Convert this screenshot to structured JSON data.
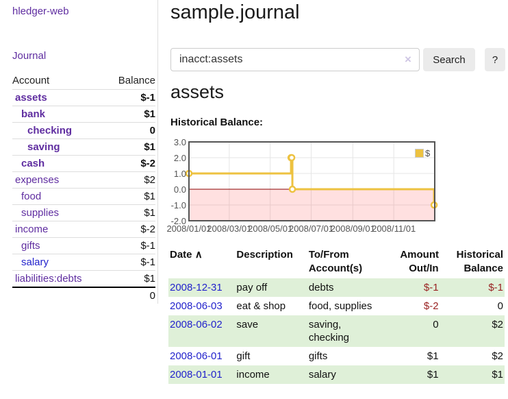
{
  "app": {
    "title": "hledger-web"
  },
  "sidebar": {
    "journal_link": "Journal",
    "accounts_table": {
      "header_account": "Account",
      "header_balance": "Balance",
      "rows": [
        {
          "account": "assets",
          "balance": "$-1",
          "indent": 1,
          "in_query": true,
          "balance_class": "neg-strong"
        },
        {
          "account": "bank",
          "balance": "$1",
          "indent": 2,
          "in_query": true,
          "balance_class": ""
        },
        {
          "account": "checking",
          "balance": "0",
          "indent": 3,
          "in_query": true,
          "balance_class": ""
        },
        {
          "account": "saving",
          "balance": "$1",
          "indent": 3,
          "in_query": true,
          "balance_class": ""
        },
        {
          "account": "cash",
          "balance": "$-2",
          "indent": 2,
          "in_query": true,
          "balance_class": "neg-strong"
        },
        {
          "account": "expenses",
          "balance": "$2",
          "indent": 1,
          "in_query": false,
          "balance_class": ""
        },
        {
          "account": "food",
          "balance": "$1",
          "indent": 2,
          "in_query": false,
          "balance_class": ""
        },
        {
          "account": "supplies",
          "balance": "$1",
          "indent": 2,
          "in_query": false,
          "balance_class": ""
        },
        {
          "account": "income",
          "balance": "$-2",
          "indent": 1,
          "in_query": false,
          "balance_class": "neg-muted"
        },
        {
          "account": "gifts",
          "balance": "$-1",
          "indent": 2,
          "in_query": false,
          "balance_class": "neg-muted"
        },
        {
          "account": "salary",
          "balance": "$-1",
          "indent": 2,
          "in_query": false,
          "balance_class": "neg-muted",
          "unvisited": true
        },
        {
          "account": "liabilities:debts",
          "balance": "$1",
          "indent": 1,
          "in_query": false,
          "balance_class": ""
        }
      ],
      "total": "0"
    }
  },
  "main": {
    "title": "sample.journal",
    "search": {
      "value": "inacct:assets",
      "clear_icon": "×",
      "search_button": "Search",
      "help_button": "?"
    },
    "account_heading": "assets",
    "chart_label": "Historical Balance:"
  },
  "chart_data": {
    "type": "line",
    "step": true,
    "title": "Historical Balance",
    "x": [
      "2008-01-01",
      "2008-06-01",
      "2008-06-02",
      "2008-06-03",
      "2008-12-31"
    ],
    "series": [
      {
        "name": "$",
        "values": [
          1,
          2,
          2,
          0,
          -1
        ]
      }
    ],
    "x_min": "2008-01-01",
    "x_max": "2009-01-01",
    "ylim": [
      -2.0,
      3.0
    ],
    "yticks": [
      "3.0",
      "2.0",
      "1.0",
      "0.0",
      "-1.0",
      "-2.0"
    ],
    "xticks": [
      "2008/01/01",
      "2008/03/01",
      "2008/05/01",
      "2008/07/01",
      "2008/09/01",
      "2008/11/01"
    ],
    "legend": "$",
    "legend_position": "top-right",
    "grid": true,
    "line_color": "#edc240",
    "marker_fill": "#ffffff",
    "negative_region_fill": "rgba(255,0,0,0.12)",
    "zero_line_color": "#8b0000",
    "border_color": "#545454",
    "gridline_color": "#e6e6e6"
  },
  "register": {
    "sort_icon": "∧",
    "headers": {
      "date": "Date",
      "description": "Description",
      "accounts": "To/From Account(s)",
      "amount": "Amount Out/In",
      "balance": "Historical Balance"
    },
    "rows": [
      {
        "date": "2008-12-31",
        "description": "pay off",
        "accounts": "debts",
        "amount": "$-1",
        "balance": "$-1",
        "amount_neg": true,
        "balance_neg": true
      },
      {
        "date": "2008-06-03",
        "description": "eat & shop",
        "accounts": "food, supplies",
        "amount": "$-2",
        "balance": "0",
        "amount_neg": true,
        "balance_neg": false
      },
      {
        "date": "2008-06-02",
        "description": "save",
        "accounts": "saving,\nchecking",
        "amount": "0",
        "balance": "$2",
        "amount_neg": false,
        "balance_neg": false
      },
      {
        "date": "2008-06-01",
        "description": "gift",
        "accounts": "gifts",
        "amount": "$1",
        "balance": "$2",
        "amount_neg": false,
        "balance_neg": false
      },
      {
        "date": "2008-01-01",
        "description": "income",
        "accounts": "salary",
        "amount": "$1",
        "balance": "$1",
        "amount_neg": false,
        "balance_neg": false
      }
    ]
  }
}
